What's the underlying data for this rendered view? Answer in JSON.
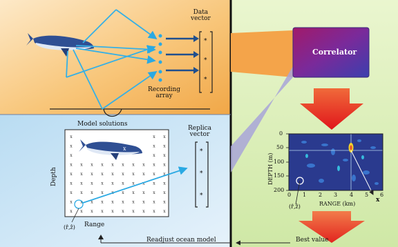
{
  "top_panel": {
    "data_vector_label": "Data\nvector",
    "recording_array_label": "Recording\narray"
  },
  "bottom_panel": {
    "model_solutions_label": "Model solutions",
    "depth_axis_label": "Depth",
    "range_axis_label": "Range",
    "replica_vector_label": "Replica\nvector",
    "estimate_label": "(r̂,ẑ)"
  },
  "correlator": {
    "label": "Correlator"
  },
  "plot": {
    "ylabel": "DEPTH (m)",
    "xlabel": "RANGE (km)",
    "yticks": [
      "0",
      "50",
      "100",
      "150",
      "200"
    ],
    "xticks": [
      "0",
      "1",
      "2",
      "3",
      "4",
      "5",
      "6"
    ],
    "estimate_label": "(r̂,ẑ)",
    "true_source_marker": "x"
  },
  "flow_labels": {
    "readjust": "Readjust ocean model",
    "best_value": "Best value"
  },
  "vector_marker": "*",
  "grid_marker": "x",
  "colors": {
    "top_panel_bg": "#f3b45a",
    "bottom_panel_bg": "#a9d2ee",
    "right_panel_bg": "#dff0b8",
    "correlator_fill": "#7a2a9a",
    "arrow_red": "#e8201a",
    "arrow_blue": "#37b4e8",
    "plot_bg": "#2c3e90",
    "whale_blue": "#3c5a9a"
  }
}
